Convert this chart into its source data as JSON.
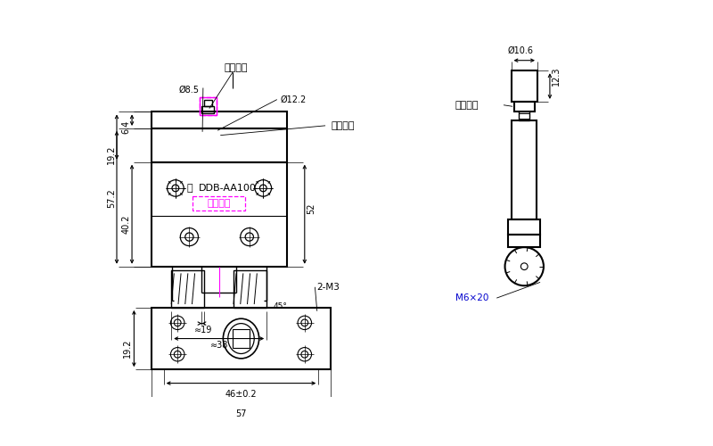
{
  "bg_color": "#ffffff",
  "lc": "#000000",
  "mc": "#ff00ff",
  "bc": "#1e40af",
  "labels": {
    "断开位置": "断开位置",
    "由型号定": "由型号定",
    "接通位置": "接通位置",
    "产品序号": "产品序号",
    "model": "DDB-AA100",
    "d85": "Ø8.5",
    "d122": "Ø12.2",
    "d572": "57.2",
    "d402": "40.2",
    "d192": "19.2",
    "d64": "6.4",
    "d52": "52",
    "d19": "≈19",
    "d38": "≈38",
    "d45": "45°",
    "d106": "Ø10.6",
    "d123": "12.3",
    "m6": "M6×20",
    "bv_192": "19.2",
    "bv_46": "46±0.2",
    "bv_57": "57",
    "bv_2m3": "2-M3"
  }
}
